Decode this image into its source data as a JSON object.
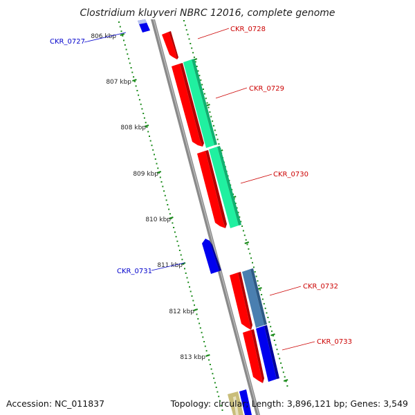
{
  "title": "Clostridium kluyveri NBRC 12016, complete genome",
  "footer": {
    "accession": "Accession: NC_011837",
    "summary": "Topology: circular; Length: 3,896,121 bp; Genes: 3,549"
  },
  "colors": {
    "backbone": "#8a8a8a",
    "tick": "#1a8a1a",
    "forward_label": "#cc0000",
    "reverse_label": "#0000cc",
    "red": "#ff0000",
    "green": "#20f0a0",
    "blue": "#0000ee",
    "steel": "#4a7fb0",
    "pale_blue": "#b8c4ee",
    "tan": "#c9bd7a"
  },
  "ticks": [
    "806 kbp",
    "807 kbp",
    "808 kbp",
    "809 kbp",
    "810 kbp",
    "811 kbp",
    "812 kbp",
    "813 kbp"
  ],
  "genes": [
    {
      "id": "CKR_0727",
      "strand": "-",
      "label": "CKR_0727"
    },
    {
      "id": "CKR_0728",
      "strand": "+",
      "label": "CKR_0728"
    },
    {
      "id": "CKR_0729",
      "strand": "+",
      "label": "CKR_0729"
    },
    {
      "id": "CKR_0730",
      "strand": "+",
      "label": "CKR_0730"
    },
    {
      "id": "CKR_0731",
      "strand": "-",
      "label": "CKR_0731"
    },
    {
      "id": "CKR_0732",
      "strand": "+",
      "label": "CKR_0732"
    },
    {
      "id": "CKR_0733",
      "strand": "+",
      "label": "CKR_0733"
    }
  ]
}
